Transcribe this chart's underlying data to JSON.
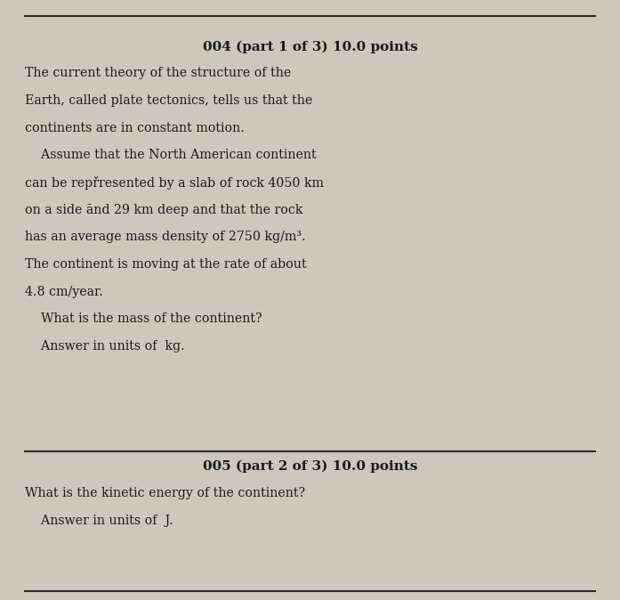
{
  "bg_color": "#cdc8bb",
  "line_color": "#2a2a2a",
  "text_color": "#1a1a1a",
  "title1": "004 (part 1 of 3) 10.0 points",
  "title2": "005 (part 2 of 3) 10.0 points",
  "figsize": [
    6.97,
    6.74
  ],
  "dpi": 100,
  "title_fontsize": 11.0,
  "body_fontsize": 10.2,
  "line_lw": 1.5,
  "body1_lines": [
    [
      "The current theory of the structure of the",
      false
    ],
    [
      "Earth, called plate tectonics, tells us that the",
      false
    ],
    [
      "continents are in constant motion.",
      false
    ],
    [
      "    Assume that the North American continent",
      false
    ],
    [
      "can be repřresented by a slab of rock 4050 km",
      false
    ],
    [
      "on a side ānd 29 km deep and that the rock",
      false
    ],
    [
      "has an average mass density of 2750 kg/m³.",
      false
    ],
    [
      "The continent is moving at the rate of about",
      false
    ],
    [
      "4.8 cm/year.",
      false
    ],
    [
      "    What is the mass of the continent?",
      false
    ],
    [
      "    Answer in units of  kg.",
      false
    ]
  ],
  "body2_lines": [
    [
      "What is the kinetic energy of the continent?",
      false
    ],
    [
      "    Answer in units of  J.",
      false
    ]
  ]
}
